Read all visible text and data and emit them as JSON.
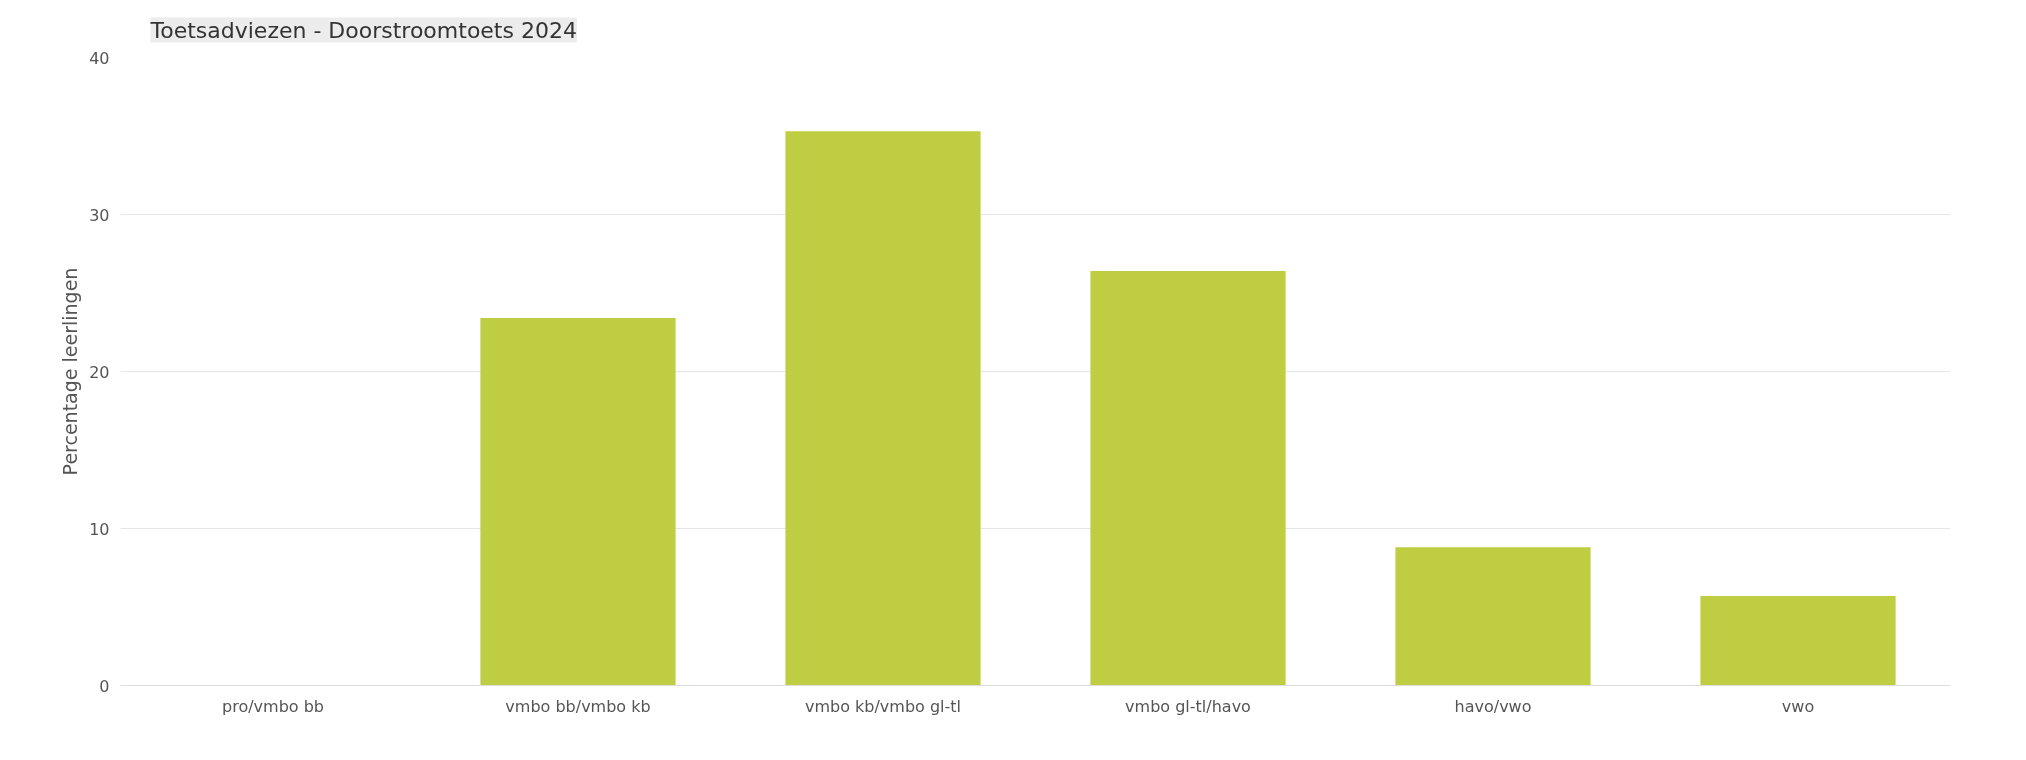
{
  "chart_data": {
    "type": "bar",
    "title": "Toetsadviezen - Doorstroomtoets 2024",
    "ylabel": "Percentage leerlingen",
    "categories": [
      "pro/vmbo bb",
      "vmbo bb/vmbo kb",
      "vmbo kb/vmbo gl-tl",
      "vmbo gl-tl/havo",
      "havo/vwo",
      "vwo"
    ],
    "values": [
      0,
      23.4,
      35.3,
      26.4,
      8.8,
      5.7
    ],
    "color": "#bfcd43",
    "ylim": [
      0,
      40
    ],
    "yticks": [
      0,
      10,
      20,
      30,
      40
    ],
    "grid": "y"
  }
}
